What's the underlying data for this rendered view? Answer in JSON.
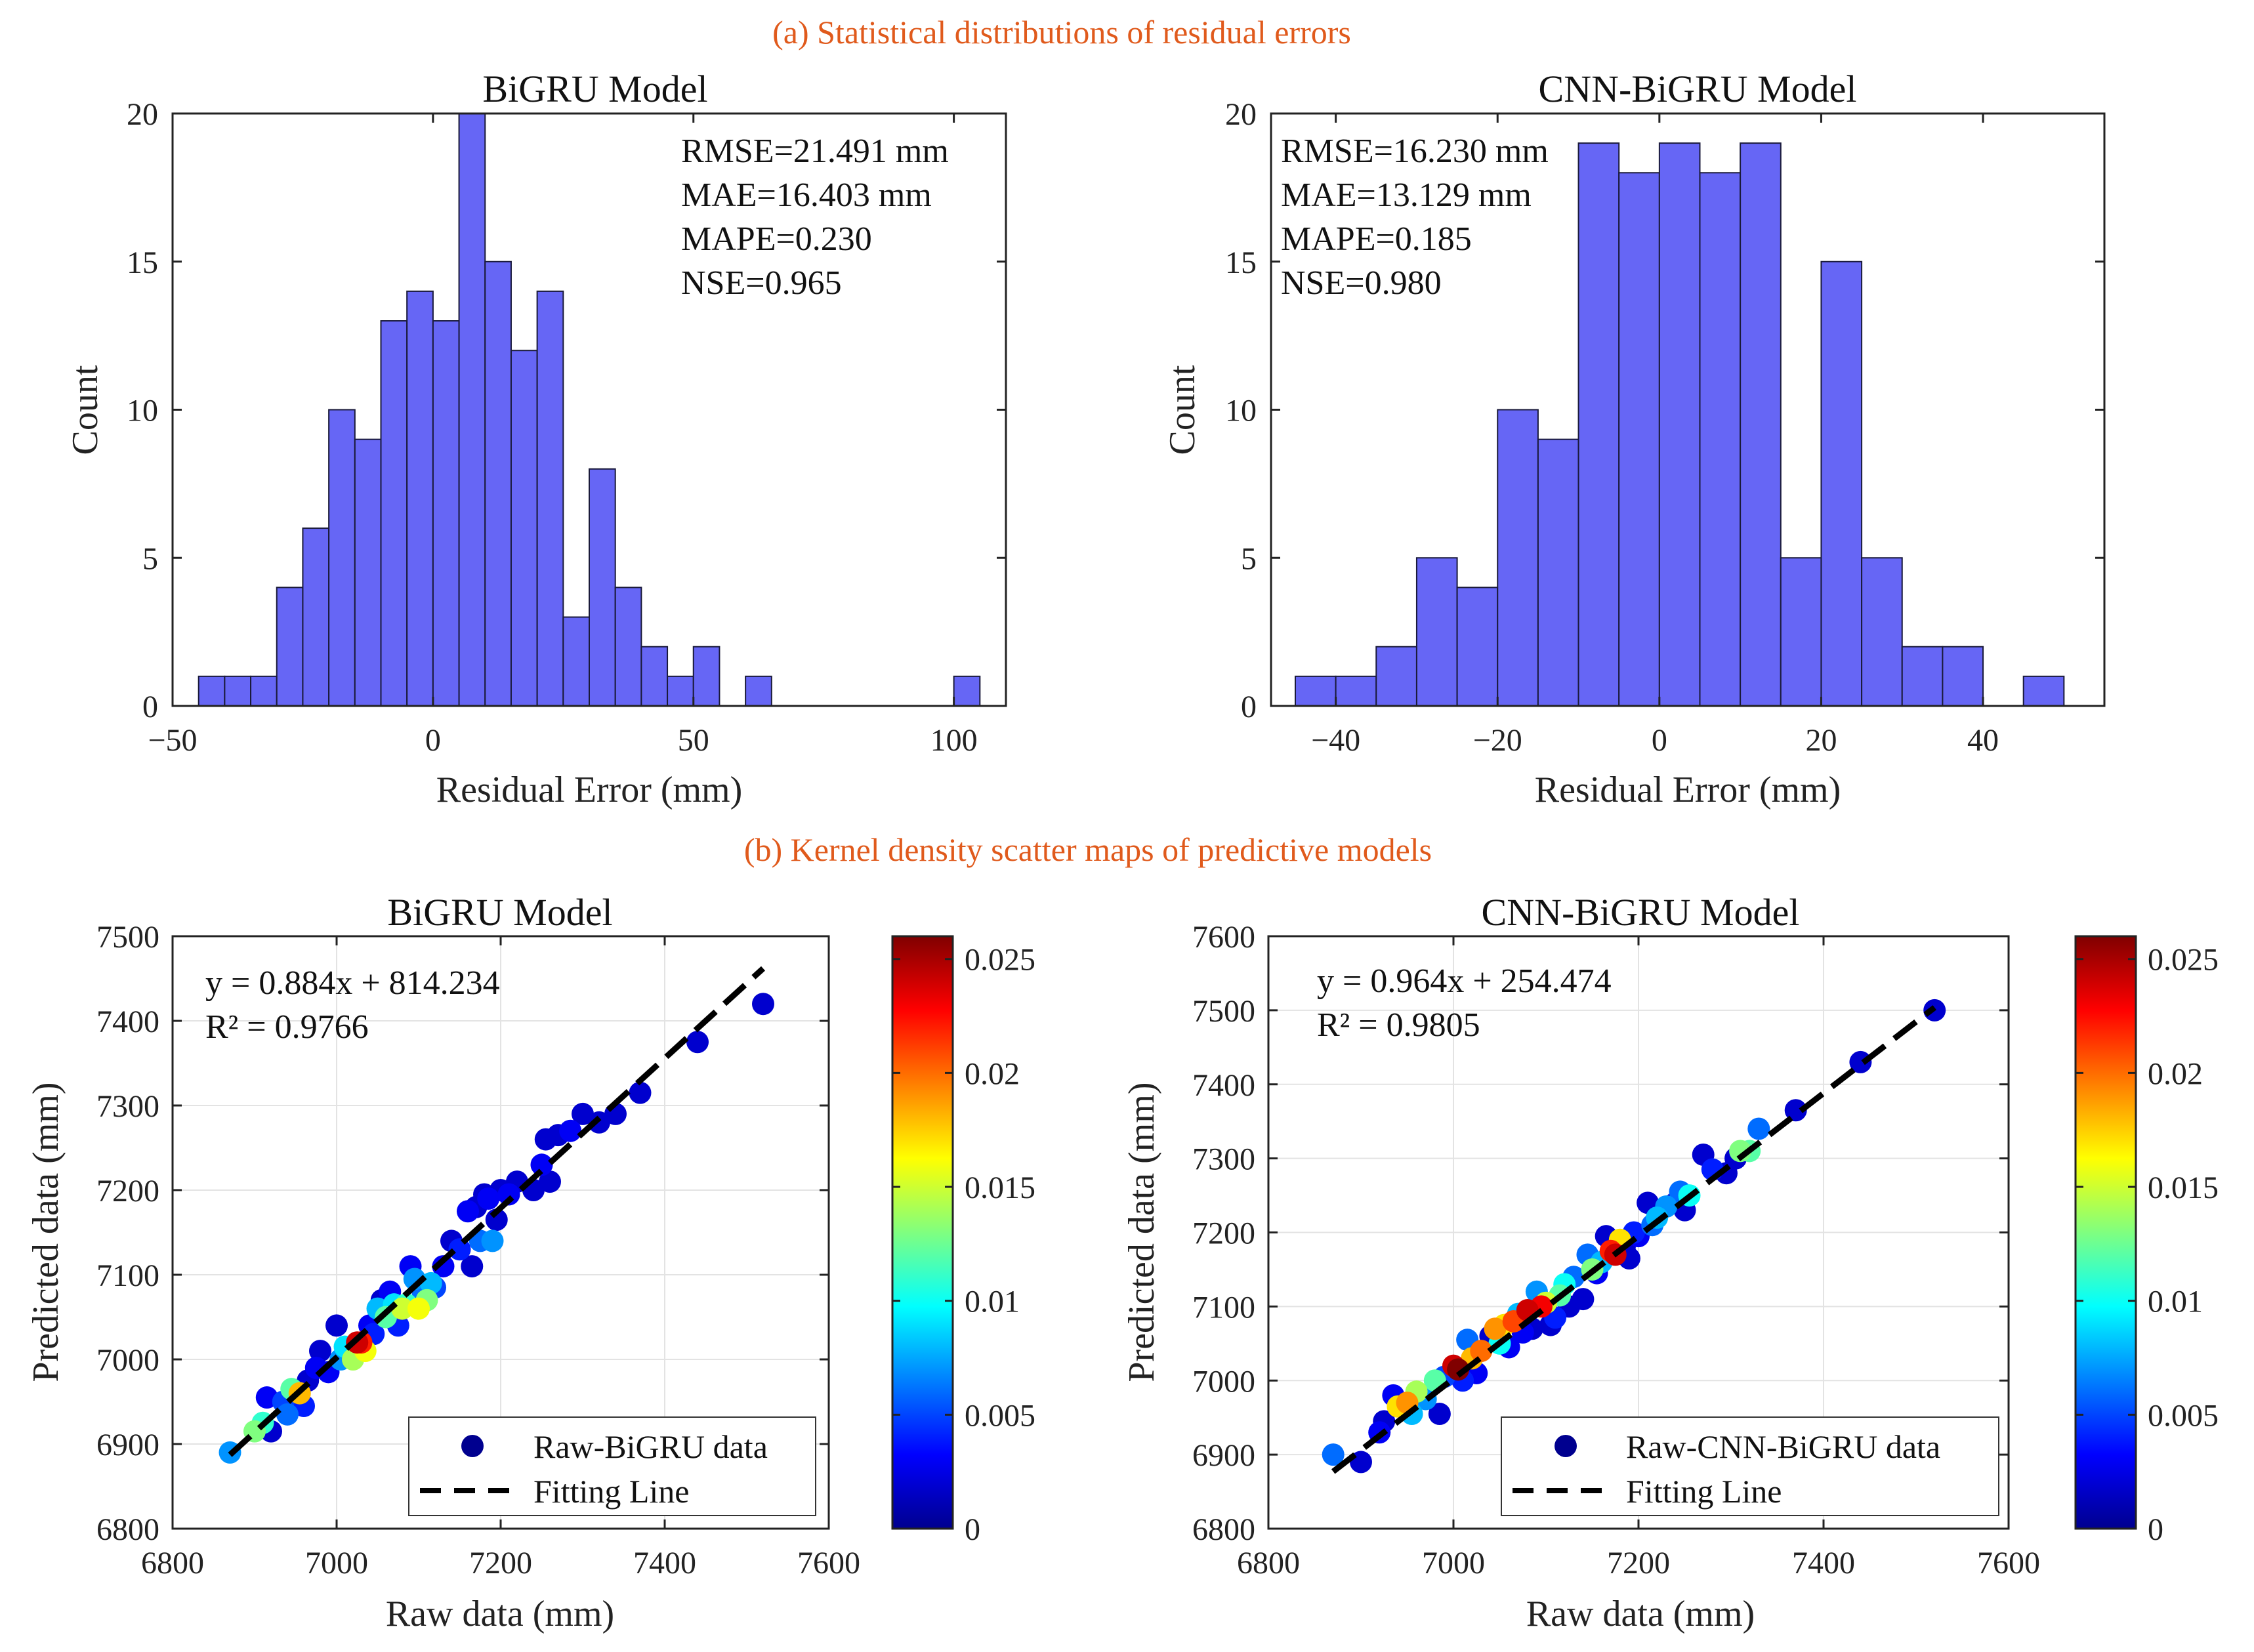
{
  "section_a_title": "(a) Statistical distributions of residual errors",
  "section_b_title": "(b) Kernel density scatter maps of predictive models",
  "colors": {
    "bar_fill": "#6666f5",
    "bar_edge": "#1a1a3a",
    "section_title": "#e05a1c"
  },
  "chart_data": [
    {
      "id": "hist_bigru",
      "type": "bar",
      "title": "BiGRU Model",
      "xlabel": "Residual Error (mm)",
      "ylabel": "Count",
      "xlim": [
        -50,
        110
      ],
      "ylim": [
        0,
        20
      ],
      "xticks": [
        -50,
        0,
        50,
        100
      ],
      "xtick_labels": [
        "−50",
        "0",
        "50",
        "100"
      ],
      "yticks": [
        0,
        5,
        10,
        15,
        20
      ],
      "bin_edges": [
        -45,
        -40,
        -35,
        -30,
        -25,
        -20,
        -15,
        -10,
        -5,
        0,
        5,
        10,
        15,
        20,
        25,
        30,
        35,
        40,
        45,
        50,
        55,
        60,
        65,
        70,
        75,
        80,
        85,
        90,
        95,
        100,
        105
      ],
      "counts": [
        1,
        1,
        1,
        4,
        6,
        10,
        9,
        13,
        14,
        13,
        20,
        15,
        12,
        14,
        3,
        8,
        4,
        2,
        1,
        2,
        0,
        1,
        0,
        0,
        0,
        0,
        0,
        0,
        0,
        1
      ],
      "stats": [
        "RMSE=21.491 mm",
        "MAE=16.403 mm",
        "MAPE=0.230",
        "NSE=0.965"
      ]
    },
    {
      "id": "hist_cnn",
      "type": "bar",
      "title": "CNN-BiGRU Model",
      "xlabel": "Residual Error (mm)",
      "ylabel": "Count",
      "xlim": [
        -48,
        55
      ],
      "ylim": [
        0,
        20
      ],
      "xticks": [
        -40,
        -20,
        0,
        20,
        40
      ],
      "xtick_labels": [
        "−40",
        "−20",
        "0",
        "20",
        "40"
      ],
      "yticks": [
        0,
        5,
        10,
        15,
        20
      ],
      "bin_edges": [
        -45,
        -40,
        -35,
        -30,
        -25,
        -20,
        -15,
        -10,
        -5,
        0,
        5,
        10,
        15,
        20,
        25,
        30,
        35,
        40,
        45,
        50
      ],
      "counts": [
        1,
        1,
        2,
        5,
        4,
        10,
        9,
        19,
        18,
        19,
        18,
        19,
        5,
        15,
        5,
        2,
        2,
        0,
        1
      ],
      "stats": [
        "RMSE=16.230 mm",
        "MAE=13.129 mm",
        "MAPE=0.185",
        "NSE=0.980"
      ]
    },
    {
      "id": "scatter_bigru",
      "type": "scatter",
      "title": "BiGRU Model",
      "xlabel": "Raw data (mm)",
      "ylabel": "Predicted data (mm)",
      "xlim": [
        6800,
        7600
      ],
      "ylim": [
        6800,
        7500
      ],
      "xticks": [
        6800,
        7000,
        7200,
        7400,
        7600
      ],
      "yticks": [
        6800,
        6900,
        7000,
        7100,
        7200,
        7300,
        7400,
        7500
      ],
      "grid": true,
      "equation": "y = 0.884x + 814.234",
      "r2": "R² = 0.9766",
      "fit": {
        "slope": 0.884,
        "intercept": 814.234,
        "x_range": [
          6870,
          7520
        ]
      },
      "legend": [
        "Raw-BiGRU data",
        "Fitting Line"
      ],
      "legend_position": "bottom-right",
      "colorbar": {
        "min": 0,
        "max": 0.026,
        "ticks": [
          0,
          0.005,
          0.01,
          0.015,
          0.02,
          0.025
        ],
        "tick_labels": [
          "0",
          "0.005",
          "0.01",
          "0.015",
          "0.02",
          "0.025"
        ]
      },
      "points": [
        [
          6870,
          6890,
          0.007
        ],
        [
          6900,
          6915,
          0.013
        ],
        [
          6910,
          6925,
          0.011
        ],
        [
          6920,
          6915,
          0.002
        ],
        [
          6915,
          6955,
          0.003
        ],
        [
          6935,
          6950,
          0.005
        ],
        [
          6940,
          6935,
          0.006
        ],
        [
          6945,
          6965,
          0.012
        ],
        [
          6955,
          6960,
          0.018
        ],
        [
          6960,
          6945,
          0.004
        ],
        [
          6965,
          6975,
          0.002
        ],
        [
          6975,
          6990,
          0.003
        ],
        [
          6980,
          7010,
          0.002
        ],
        [
          6990,
          6985,
          0.003
        ],
        [
          7000,
          7040,
          0.002
        ],
        [
          7005,
          7000,
          0.007
        ],
        [
          7010,
          7015,
          0.009
        ],
        [
          7020,
          7000,
          0.014
        ],
        [
          7025,
          7020,
          0.024
        ],
        [
          7030,
          7020,
          0.022
        ],
        [
          7035,
          7010,
          0.016
        ],
        [
          7040,
          7040,
          0.003
        ],
        [
          7045,
          7030,
          0.004
        ],
        [
          7050,
          7060,
          0.008
        ],
        [
          7055,
          7070,
          0.002
        ],
        [
          7060,
          7050,
          0.012
        ],
        [
          7065,
          7080,
          0.003
        ],
        [
          7070,
          7065,
          0.009
        ],
        [
          7075,
          7040,
          0.004
        ],
        [
          7080,
          7060,
          0.015
        ],
        [
          7085,
          7065,
          0.011
        ],
        [
          7090,
          7110,
          0.003
        ],
        [
          7095,
          7095,
          0.007
        ],
        [
          7100,
          7060,
          0.016
        ],
        [
          7105,
          7080,
          0.006
        ],
        [
          7110,
          7070,
          0.013
        ],
        [
          7115,
          7090,
          0.008
        ],
        [
          7120,
          7085,
          0.005
        ],
        [
          7130,
          7110,
          0.003
        ],
        [
          7140,
          7140,
          0.002
        ],
        [
          7150,
          7130,
          0.004
        ],
        [
          7160,
          7175,
          0.003
        ],
        [
          7165,
          7110,
          0.002
        ],
        [
          7170,
          7180,
          0.002
        ],
        [
          7175,
          7140,
          0.006
        ],
        [
          7180,
          7195,
          0.002
        ],
        [
          7185,
          7190,
          0.003
        ],
        [
          7190,
          7140,
          0.007
        ],
        [
          7195,
          7165,
          0.002
        ],
        [
          7200,
          7200,
          0.002
        ],
        [
          7210,
          7195,
          0.003
        ],
        [
          7220,
          7210,
          0.002
        ],
        [
          7240,
          7200,
          0.002
        ],
        [
          7250,
          7230,
          0.003
        ],
        [
          7255,
          7260,
          0.002
        ],
        [
          7260,
          7210,
          0.002
        ],
        [
          7270,
          7265,
          0.002
        ],
        [
          7285,
          7270,
          0.003
        ],
        [
          7300,
          7290,
          0.002
        ],
        [
          7320,
          7280,
          0.002
        ],
        [
          7340,
          7290,
          0.002
        ],
        [
          7370,
          7315,
          0.002
        ],
        [
          7440,
          7375,
          0.002
        ],
        [
          7520,
          7420,
          0.002
        ]
      ]
    },
    {
      "id": "scatter_cnn",
      "type": "scatter",
      "title": "CNN-BiGRU Model",
      "xlabel": "Raw data (mm)",
      "ylabel": "Predicted data (mm)",
      "xlim": [
        6800,
        7600
      ],
      "ylim": [
        6800,
        7600
      ],
      "xticks": [
        6800,
        7000,
        7200,
        7400,
        7600
      ],
      "yticks": [
        6800,
        6900,
        7000,
        7100,
        7200,
        7300,
        7400,
        7500,
        7600
      ],
      "grid": true,
      "equation": "y = 0.964x + 254.474",
      "r2": "R² = 0.9805",
      "fit": {
        "slope": 0.964,
        "intercept": 254.474,
        "x_range": [
          6870,
          7520
        ]
      },
      "legend": [
        "Raw-CNN-BiGRU data",
        "Fitting Line"
      ],
      "legend_position": "bottom-right",
      "colorbar": {
        "min": 0,
        "max": 0.026,
        "ticks": [
          0,
          0.005,
          0.01,
          0.015,
          0.02,
          0.025
        ],
        "tick_labels": [
          "0",
          "0.005",
          "0.01",
          "0.015",
          "0.02",
          "0.025"
        ]
      },
      "points": [
        [
          6870,
          6900,
          0.006
        ],
        [
          6900,
          6890,
          0.002
        ],
        [
          6920,
          6930,
          0.003
        ],
        [
          6925,
          6945,
          0.002
        ],
        [
          6935,
          6980,
          0.003
        ],
        [
          6940,
          6965,
          0.017
        ],
        [
          6950,
          6970,
          0.019
        ],
        [
          6955,
          6955,
          0.008
        ],
        [
          6960,
          6985,
          0.014
        ],
        [
          6970,
          6975,
          0.007
        ],
        [
          6980,
          7000,
          0.012
        ],
        [
          6985,
          6955,
          0.002
        ],
        [
          6990,
          7005,
          0.005
        ],
        [
          7000,
          7020,
          0.024
        ],
        [
          7005,
          7015,
          0.026
        ],
        [
          7010,
          7000,
          0.004
        ],
        [
          7015,
          7055,
          0.006
        ],
        [
          7020,
          7030,
          0.018
        ],
        [
          7025,
          7010,
          0.003
        ],
        [
          7030,
          7040,
          0.02
        ],
        [
          7040,
          7060,
          0.002
        ],
        [
          7045,
          7070,
          0.019
        ],
        [
          7050,
          7050,
          0.01
        ],
        [
          7055,
          7075,
          0.017
        ],
        [
          7060,
          7045,
          0.003
        ],
        [
          7065,
          7080,
          0.021
        ],
        [
          7070,
          7090,
          0.008
        ],
        [
          7075,
          7065,
          0.003
        ],
        [
          7080,
          7095,
          0.024
        ],
        [
          7085,
          7070,
          0.002
        ],
        [
          7090,
          7120,
          0.007
        ],
        [
          7095,
          7100,
          0.023
        ],
        [
          7100,
          7105,
          0.015
        ],
        [
          7105,
          7075,
          0.002
        ],
        [
          7110,
          7085,
          0.004
        ],
        [
          7115,
          7115,
          0.012
        ],
        [
          7120,
          7130,
          0.01
        ],
        [
          7125,
          7100,
          0.002
        ],
        [
          7130,
          7140,
          0.006
        ],
        [
          7140,
          7110,
          0.002
        ],
        [
          7145,
          7170,
          0.006
        ],
        [
          7150,
          7150,
          0.013
        ],
        [
          7155,
          7145,
          0.003
        ],
        [
          7160,
          7160,
          0.008
        ],
        [
          7165,
          7195,
          0.002
        ],
        [
          7170,
          7175,
          0.022
        ],
        [
          7175,
          7170,
          0.024
        ],
        [
          7180,
          7190,
          0.017
        ],
        [
          7185,
          7180,
          0.002
        ],
        [
          7190,
          7165,
          0.002
        ],
        [
          7195,
          7200,
          0.004
        ],
        [
          7200,
          7195,
          0.003
        ],
        [
          7210,
          7240,
          0.002
        ],
        [
          7215,
          7210,
          0.006
        ],
        [
          7220,
          7220,
          0.008
        ],
        [
          7230,
          7235,
          0.007
        ],
        [
          7240,
          7240,
          0.002
        ],
        [
          7245,
          7255,
          0.006
        ],
        [
          7250,
          7230,
          0.002
        ],
        [
          7255,
          7250,
          0.01
        ],
        [
          7270,
          7305,
          0.002
        ],
        [
          7280,
          7285,
          0.004
        ],
        [
          7295,
          7280,
          0.002
        ],
        [
          7305,
          7300,
          0.002
        ],
        [
          7310,
          7310,
          0.013
        ],
        [
          7320,
          7310,
          0.012
        ],
        [
          7330,
          7340,
          0.006
        ],
        [
          7370,
          7365,
          0.002
        ],
        [
          7440,
          7430,
          0.002
        ],
        [
          7520,
          7500,
          0.002
        ]
      ]
    }
  ]
}
